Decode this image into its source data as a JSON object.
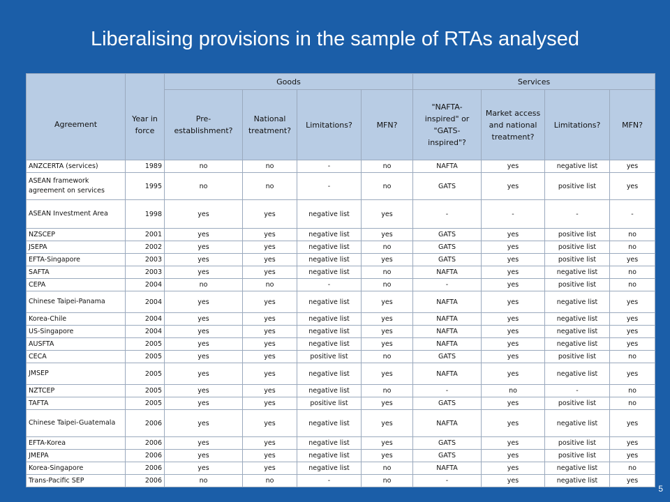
{
  "slide": {
    "title": "Liberalising provisions in the sample of RTAs analysed",
    "page_number": "5"
  },
  "table": {
    "group_headers": {
      "goods": "Goods",
      "services": "Services"
    },
    "columns": [
      "Agreement",
      "Year in force",
      "Pre-establishment?",
      "National treatment?",
      "Limitations?",
      "MFN?",
      "\"NAFTA-inspired\" or \"GATS-inspired\"?",
      "Market access and national treatment?",
      "Limitations?",
      "MFN?"
    ],
    "rows": [
      {
        "h": "",
        "cells": [
          "ANZCERTA (services)",
          "1989",
          "no",
          "no",
          "-",
          "no",
          "NAFTA",
          "yes",
          "negative list",
          "yes"
        ]
      },
      {
        "h": "tall",
        "cells": [
          "ASEAN framework agreement on services",
          "1995",
          "no",
          "no",
          "-",
          "no",
          "GATS",
          "yes",
          "positive list",
          "yes"
        ]
      },
      {
        "h": "taller",
        "cells": [
          "ASEAN Investment Area",
          "1998",
          "yes",
          "yes",
          "negative list",
          "yes",
          "-",
          "-",
          "-",
          "-"
        ]
      },
      {
        "h": "",
        "cells": [
          "NZSCEP",
          "2001",
          "yes",
          "yes",
          "negative list",
          "yes",
          "GATS",
          "yes",
          "positive list",
          "no"
        ]
      },
      {
        "h": "",
        "cells": [
          "JSEPA",
          "2002",
          "yes",
          "yes",
          "negative list",
          "no",
          "GATS",
          "yes",
          "positive list",
          "no"
        ]
      },
      {
        "h": "",
        "cells": [
          "EFTA-Singapore",
          "2003",
          "yes",
          "yes",
          "negative list",
          "yes",
          "GATS",
          "yes",
          "positive list",
          "yes"
        ]
      },
      {
        "h": "",
        "cells": [
          "SAFTA",
          "2003",
          "yes",
          "yes",
          "negative list",
          "no",
          "NAFTA",
          "yes",
          "negative list",
          "no"
        ]
      },
      {
        "h": "",
        "cells": [
          "CEPA",
          "2004",
          "no",
          "no",
          "-",
          "no",
          "-",
          "yes",
          "positive list",
          "no"
        ]
      },
      {
        "h": "mid",
        "cells": [
          "Chinese Taipei-Panama",
          "2004",
          "yes",
          "yes",
          "negative list",
          "yes",
          "NAFTA",
          "yes",
          "negative list",
          "yes"
        ]
      },
      {
        "h": "",
        "cells": [
          "Korea-Chile",
          "2004",
          "yes",
          "yes",
          "negative list",
          "yes",
          "NAFTA",
          "yes",
          "negative list",
          "yes"
        ]
      },
      {
        "h": "",
        "cells": [
          "US-Singapore",
          "2004",
          "yes",
          "yes",
          "negative list",
          "yes",
          "NAFTA",
          "yes",
          "negative list",
          "yes"
        ]
      },
      {
        "h": "",
        "cells": [
          "AUSFTA",
          "2005",
          "yes",
          "yes",
          "negative list",
          "yes",
          "NAFTA",
          "yes",
          "negative list",
          "yes"
        ]
      },
      {
        "h": "",
        "cells": [
          "CECA",
          "2005",
          "yes",
          "yes",
          "positive list",
          "no",
          "GATS",
          "yes",
          "positive list",
          "no"
        ]
      },
      {
        "h": "mid",
        "cells": [
          "JMSEP",
          "2005",
          "yes",
          "yes",
          "negative list",
          "yes",
          "NAFTA",
          "yes",
          "negative list",
          "yes"
        ]
      },
      {
        "h": "",
        "cells": [
          "NZTCEP",
          "2005",
          "yes",
          "yes",
          "negative list",
          "no",
          "-",
          "no",
          "-",
          "no"
        ]
      },
      {
        "h": "",
        "cells": [
          "TAFTA",
          "2005",
          "yes",
          "yes",
          "positive list",
          "yes",
          "GATS",
          "yes",
          "positive list",
          "no"
        ]
      },
      {
        "h": "tall",
        "cells": [
          "Chinese Taipei-Guatemala",
          "2006",
          "yes",
          "yes",
          "negative list",
          "yes",
          "NAFTA",
          "yes",
          "negative list",
          "yes"
        ]
      },
      {
        "h": "",
        "cells": [
          "EFTA-Korea",
          "2006",
          "yes",
          "yes",
          "negative list",
          "yes",
          "GATS",
          "yes",
          "positive list",
          "yes"
        ]
      },
      {
        "h": "",
        "cells": [
          "JMEPA",
          "2006",
          "yes",
          "yes",
          "negative list",
          "yes",
          "GATS",
          "yes",
          "positive list",
          "yes"
        ]
      },
      {
        "h": "",
        "cells": [
          "Korea-Singapore",
          "2006",
          "yes",
          "yes",
          "negative list",
          "no",
          "NAFTA",
          "yes",
          "negative list",
          "no"
        ]
      },
      {
        "h": "",
        "cells": [
          "Trans-Pacific SEP",
          "2006",
          "no",
          "no",
          "-",
          "no",
          "-",
          "yes",
          "negative list",
          "yes"
        ]
      }
    ]
  }
}
